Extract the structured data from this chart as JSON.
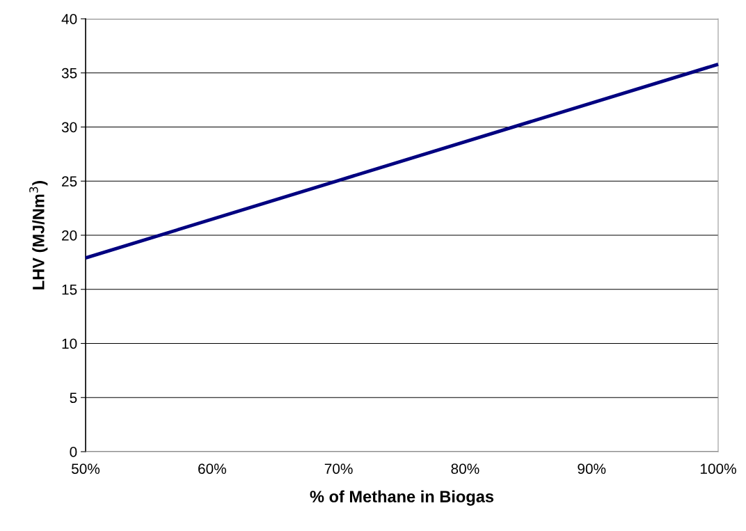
{
  "chart_data": {
    "type": "line",
    "xlabel": "% of Methane in Biogas",
    "ylabel": "LHV (MJ/Nm$^{3}$)",
    "x": [
      50,
      100
    ],
    "series": [
      {
        "color": "#000080",
        "values": [
          17.9,
          35.8
        ]
      }
    ],
    "xlim": [
      50,
      100
    ],
    "xticks": [
      {
        "value": 50,
        "label": "50%"
      },
      {
        "value": 60,
        "label": "60%"
      },
      {
        "value": 70,
        "label": "70%"
      },
      {
        "value": 80,
        "label": "80%"
      },
      {
        "value": 90,
        "label": "90%"
      },
      {
        "value": 100,
        "label": "100%"
      }
    ],
    "ylim": [
      0,
      40
    ],
    "yticks": [
      0,
      5,
      10,
      15,
      20,
      25,
      30,
      35,
      40
    ],
    "grid": "y",
    "marker": "none",
    "line_style": "solid",
    "legend": false
  }
}
